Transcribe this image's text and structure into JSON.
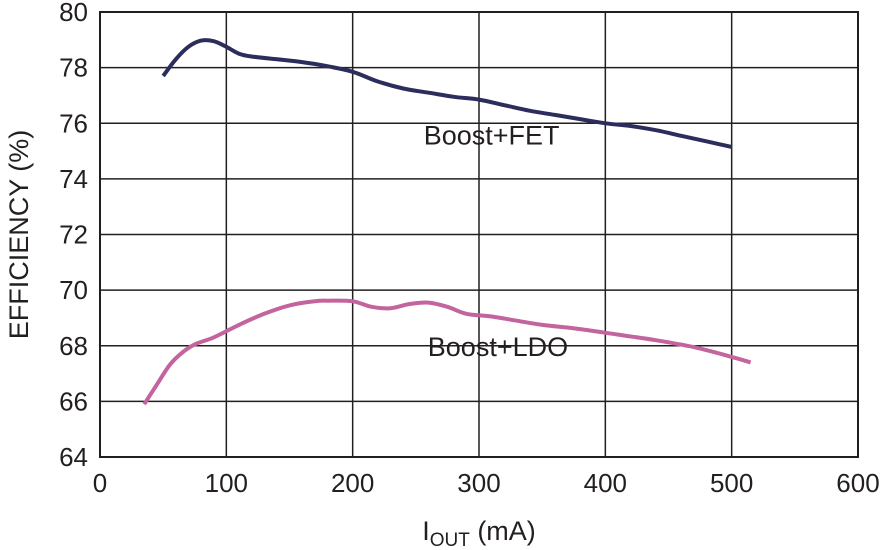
{
  "chart_data": {
    "type": "line",
    "xlabel_main": "I",
    "xlabel_sub": "OUT",
    "xlabel_unit": " (mA)",
    "ylabel": "EFFICIENCY (%)",
    "xlim": [
      0,
      600
    ],
    "ylim": [
      64,
      80
    ],
    "x_ticks": [
      0,
      100,
      200,
      300,
      400,
      500,
      600
    ],
    "y_ticks": [
      64,
      66,
      68,
      70,
      72,
      74,
      76,
      78,
      80
    ],
    "grid": true,
    "series": [
      {
        "name": "Boost+FET",
        "color": "#2b2d5c",
        "label_at": [
          310,
          75.6
        ],
        "x": [
          50,
          60,
          70,
          80,
          90,
          100,
          110,
          120,
          140,
          160,
          180,
          200,
          220,
          240,
          260,
          280,
          300,
          320,
          340,
          360,
          380,
          400,
          420,
          440,
          460,
          480,
          500
        ],
        "y": [
          77.7,
          78.3,
          78.75,
          78.97,
          78.95,
          78.75,
          78.5,
          78.4,
          78.3,
          78.2,
          78.05,
          77.85,
          77.5,
          77.25,
          77.1,
          76.95,
          76.85,
          76.65,
          76.45,
          76.3,
          76.15,
          76.0,
          75.9,
          75.75,
          75.55,
          75.35,
          75.15
        ]
      },
      {
        "name": "Boost+LDO",
        "color": "#c4649e",
        "label_at": [
          315,
          68.0
        ],
        "x": [
          35,
          45,
          55,
          65,
          75,
          90,
          110,
          130,
          150,
          170,
          180,
          200,
          215,
          230,
          245,
          260,
          275,
          290,
          310,
          330,
          350,
          380,
          410,
          440,
          470,
          500,
          515
        ],
        "y": [
          65.9,
          66.6,
          67.3,
          67.75,
          68.05,
          68.3,
          68.75,
          69.15,
          69.45,
          69.6,
          69.62,
          69.6,
          69.4,
          69.35,
          69.5,
          69.55,
          69.4,
          69.15,
          69.05,
          68.9,
          68.75,
          68.6,
          68.4,
          68.2,
          67.95,
          67.6,
          67.4
        ]
      }
    ]
  }
}
